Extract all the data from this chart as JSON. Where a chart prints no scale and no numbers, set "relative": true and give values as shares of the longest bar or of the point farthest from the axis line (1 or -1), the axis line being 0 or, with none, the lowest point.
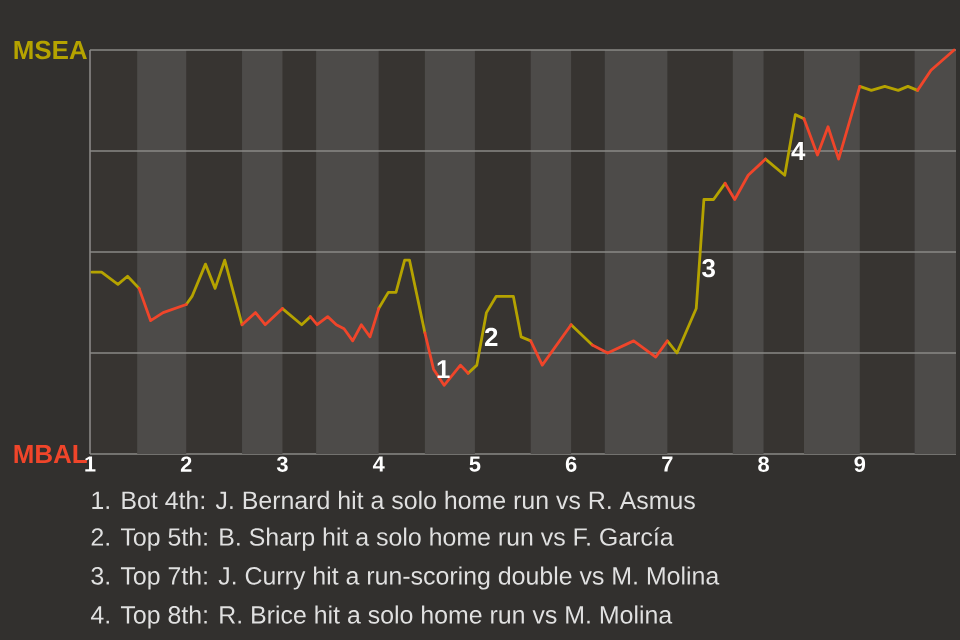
{
  "chart_data": {
    "type": "line",
    "relative": true,
    "series": [
      {
        "color": "#b5a300",
        "x": [
          1.02,
          1.12,
          1.29,
          1.39,
          1.51,
          1.63,
          1.76,
          1.88,
          2.0,
          2.06,
          2.2,
          2.3,
          2.4,
          2.58,
          2.72,
          2.82,
          3.0,
          3.2,
          3.29,
          3.36,
          3.47,
          3.56,
          3.64,
          3.73,
          3.82,
          3.91,
          4.0,
          4.1,
          4.18,
          4.27,
          4.32,
          4.48,
          4.57,
          4.68,
          4.85,
          4.93,
          5.02,
          5.12,
          5.22,
          5.4,
          5.48,
          5.58,
          5.7,
          6.0,
          6.22,
          6.38,
          6.65,
          6.88,
          7.0,
          7.1,
          7.3,
          7.38,
          7.48,
          7.6,
          7.7,
          7.84,
          8.02,
          8.22,
          8.33,
          8.42,
          8.56,
          8.67,
          8.78,
          9.0,
          9.12,
          9.26,
          9.4,
          9.5,
          9.6
        ],
        "values": [
          0.45,
          0.45,
          0.42,
          0.44,
          0.41,
          null,
          null,
          null,
          0.37,
          0.39,
          0.47,
          0.41,
          0.48,
          0.32,
          null,
          null,
          0.36,
          0.32,
          0.34,
          null,
          null,
          null,
          null,
          null,
          null,
          null,
          0.36,
          0.4,
          0.4,
          0.48,
          0.48,
          0.3,
          null,
          null,
          null,
          0.2,
          0.22,
          0.35,
          0.39,
          0.39,
          0.29,
          0.28,
          null,
          0.32,
          0.27,
          null,
          null,
          null,
          0.28,
          0.25,
          0.36,
          0.63,
          0.63,
          0.67,
          null,
          null,
          0.73,
          0.69,
          0.84,
          0.83,
          null,
          null,
          null,
          0.91,
          0.9,
          0.91,
          0.9,
          0.91,
          0.9
        ]
      },
      {
        "color": "#f0452a",
        "x": [
          1.51,
          1.63,
          1.76,
          1.88,
          2.0,
          2.06,
          2.2,
          2.3,
          2.4,
          2.58,
          2.72,
          2.82,
          3.0,
          3.2,
          3.29,
          3.36,
          3.47,
          3.56,
          3.64,
          3.73,
          3.82,
          3.91,
          4.0,
          4.1,
          4.18,
          4.27,
          4.32,
          4.48,
          4.57,
          4.68,
          4.85,
          4.93,
          5.02,
          5.12,
          5.22,
          5.4,
          5.48,
          5.58,
          5.7,
          6.0,
          6.11,
          6.22,
          6.38,
          6.65,
          6.88,
          7.0,
          7.1,
          7.3,
          7.38,
          7.48,
          7.6,
          7.7,
          7.84,
          8.02,
          8.22,
          8.33,
          8.42,
          8.56,
          8.67,
          8.78,
          9.0,
          9.12,
          9.26,
          9.4,
          9.5,
          9.6,
          9.74,
          9.98
        ],
        "values": [
          0.41,
          0.33,
          0.35,
          0.36,
          0.37,
          null,
          null,
          null,
          null,
          0.32,
          0.35,
          0.32,
          0.36,
          null,
          0.34,
          0.32,
          0.34,
          0.32,
          0.31,
          0.28,
          0.32,
          0.29,
          0.36,
          null,
          null,
          null,
          null,
          0.3,
          0.21,
          0.17,
          0.22,
          0.2,
          null,
          null,
          null,
          null,
          null,
          0.28,
          0.22,
          0.32,
          null,
          0.27,
          0.25,
          0.28,
          0.24,
          0.28,
          null,
          null,
          null,
          null,
          0.67,
          0.63,
          0.69,
          0.73,
          null,
          null,
          0.83,
          0.74,
          0.81,
          0.73,
          0.91,
          null,
          null,
          null,
          null,
          0.9,
          0.95,
          1.0
        ]
      }
    ],
    "xlim": [
      1,
      10
    ],
    "xticks": [
      1,
      2,
      3,
      4,
      5,
      6,
      7,
      8,
      9
    ],
    "ref_lines": [
      {
        "axis": "y",
        "value": 0.25,
        "color": "#8a8886"
      },
      {
        "axis": "y",
        "value": 0.5,
        "color": "#8a8886"
      },
      {
        "axis": "y",
        "value": 0.75,
        "color": "#8a8886"
      },
      {
        "axis": "y",
        "value": 1,
        "color": "#8a8886"
      }
    ],
    "bands": [
      {
        "axis": "x",
        "from": 1.49,
        "to": 2,
        "color": "#4d4b49"
      },
      {
        "axis": "x",
        "from": 2.58,
        "to": 3,
        "color": "#4d4b49"
      },
      {
        "axis": "x",
        "from": 3.35,
        "to": 4,
        "color": "#4d4b49"
      },
      {
        "axis": "x",
        "from": 4.48,
        "to": 5,
        "color": "#4d4b49"
      },
      {
        "axis": "x",
        "from": 5.58,
        "to": 6,
        "color": "#4d4b49"
      },
      {
        "axis": "x",
        "from": 6.35,
        "to": 7,
        "color": "#4d4b49"
      },
      {
        "axis": "x",
        "from": 7.68,
        "to": 8,
        "color": "#4d4b49"
      },
      {
        "axis": "x",
        "from": 8.42,
        "to": 9,
        "color": "#4d4b49"
      },
      {
        "axis": "x",
        "from": 9.57,
        "to": 10,
        "color": "#4d4b49"
      }
    ],
    "annotations": [
      "MSEA",
      "MBAL",
      {
        "text": "1",
        "x": 4.57,
        "y": 0.21
      },
      {
        "text": "2",
        "x": 5.07,
        "y": 0.29
      },
      {
        "text": "3",
        "x": 7.33,
        "y": 0.46
      },
      {
        "text": "4",
        "x": 8.26,
        "y": 0.75
      },
      "1. Bot 4th: J. Bernard hit a solo home run vs R. Asmus",
      "2. Top 5th: B. Sharp hit a solo home run vs F. García",
      "3. Top 7th: J. Curry hit a run-scoring double vs M. Molina",
      "4. Top 8th: R. Brice hit a solo home run vs M. Molina"
    ]
  }
}
